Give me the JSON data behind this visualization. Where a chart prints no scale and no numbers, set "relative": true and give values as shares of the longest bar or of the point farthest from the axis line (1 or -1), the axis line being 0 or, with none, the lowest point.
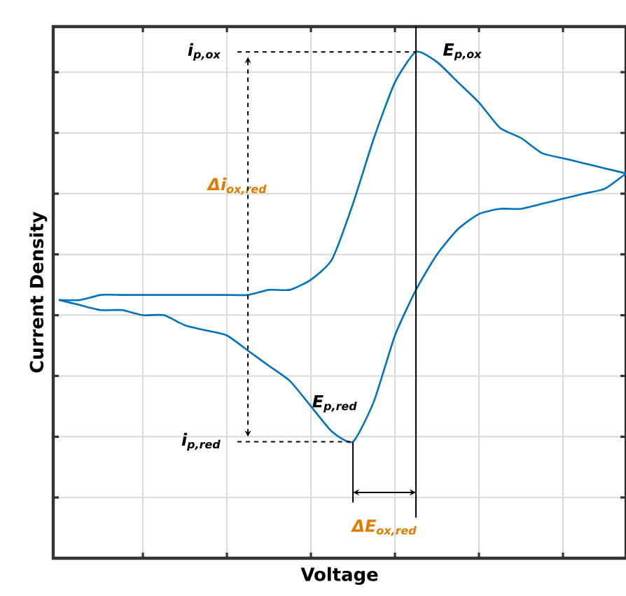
{
  "chart_data": {
    "type": "line",
    "xlabel": "Voltage",
    "ylabel": "Current Density",
    "relative": true,
    "grid": true,
    "tick_labels": false,
    "marker": "none",
    "line_style": "solid",
    "categories": [
      null,
      null,
      null,
      null,
      null,
      null,
      null,
      null,
      null,
      null,
      null,
      null,
      null,
      null,
      null,
      null,
      null,
      null,
      null,
      null,
      null,
      null,
      null,
      null,
      null,
      null,
      null,
      null
    ],
    "series": [
      {
        "color": "#0072bd",
        "values": [
          0.51,
          0.51,
          0.52,
          0.52,
          0.52,
          0.52,
          0.52,
          0.52,
          0.52,
          0.52,
          0.53,
          0.53,
          0.55,
          0.59,
          0.7,
          0.83,
          0.94,
          1.0,
          0.98,
          0.94,
          0.9,
          0.85,
          0.83,
          0.8,
          0.79,
          0.78,
          0.77,
          0.76
        ]
      },
      {
        "color": "#0072bd",
        "values": [
          0.51,
          0.5,
          0.49,
          0.49,
          0.48,
          0.48,
          0.46,
          0.45,
          0.44,
          0.41,
          0.38,
          0.35,
          0.3,
          0.25,
          0.23,
          0.31,
          0.44,
          0.53,
          0.6,
          0.65,
          0.68,
          0.69,
          0.69,
          0.7,
          0.71,
          0.72,
          0.73,
          0.76
        ]
      }
    ],
    "annotations": [
      "i$_{p,ox}$",
      "E$_{p,ox}$",
      "Δi$_{ox,red}$",
      "E$_{p,red}$",
      "i$_{p,red}$",
      "ΔE$_{ox,red}$"
    ]
  }
}
